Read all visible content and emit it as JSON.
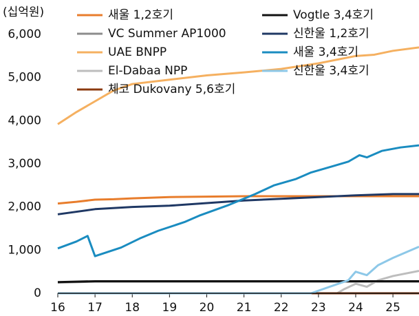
{
  "chart_data": {
    "type": "line",
    "unit_label": "(십억원)",
    "xlim": [
      16,
      25.7
    ],
    "xticks": [
      16,
      17,
      18,
      19,
      20,
      21,
      22,
      23,
      24,
      25
    ],
    "ylim": [
      0,
      6000
    ],
    "yticks": [
      0,
      {
        "value": 1000,
        "label": "1,000"
      },
      {
        "value": 2000,
        "label": "2,000"
      },
      {
        "value": 3000,
        "label": "3,000"
      },
      {
        "value": 4000,
        "label": "4,000"
      },
      {
        "value": 5000,
        "label": "5,000"
      },
      {
        "value": 6000,
        "label": "6,000"
      }
    ],
    "grid": false,
    "series": [
      {
        "name": "새울 1,2호기",
        "color": "#e87d2c",
        "x": [
          16,
          16.5,
          17,
          17.5,
          18,
          19,
          20,
          21,
          22,
          23,
          24,
          25,
          25.7
        ],
        "values": [
          2080,
          2120,
          2170,
          2180,
          2200,
          2230,
          2240,
          2250,
          2250,
          2250,
          2250,
          2250,
          2250
        ]
      },
      {
        "name": "VC Summer AP1000",
        "color": "#8c8c8c",
        "x": [
          16,
          17,
          18,
          19,
          20,
          21,
          22,
          23,
          24,
          25,
          25.7
        ],
        "values": [
          250,
          270,
          270,
          270,
          270,
          270,
          270,
          270,
          270,
          270,
          270
        ]
      },
      {
        "name": "UAE BNPP",
        "color": "#f5b060",
        "x": [
          16,
          16.5,
          17,
          17.5,
          18,
          19,
          20,
          21,
          22,
          23,
          24,
          24.5,
          25,
          25.7
        ],
        "values": [
          3920,
          4200,
          4450,
          4700,
          4850,
          4950,
          5050,
          5120,
          5200,
          5330,
          5500,
          5530,
          5620,
          5700
        ]
      },
      {
        "name": "El-Dabaa NPP",
        "color": "#bdbdbd",
        "x": [
          16,
          23.5,
          23.7,
          24,
          24.3,
          24.6,
          25,
          25.7
        ],
        "values": [
          0,
          0,
          100,
          220,
          150,
          300,
          400,
          520
        ]
      },
      {
        "name": "체코 Dukovany 5,6호기",
        "color": "#8b3a0f",
        "x": [
          16,
          25.7
        ],
        "values": [
          0,
          0
        ]
      },
      {
        "name": "Vogtle 3,4호기",
        "color": "#111111",
        "x": [
          16,
          17,
          18,
          19,
          20,
          21,
          22,
          23,
          24,
          25,
          25.7
        ],
        "values": [
          260,
          280,
          280,
          280,
          280,
          280,
          280,
          280,
          280,
          280,
          280
        ]
      },
      {
        "name": "신한울 1,2호기",
        "color": "#1f3864",
        "x": [
          16,
          17,
          18,
          19,
          20,
          21,
          22,
          23,
          24,
          25,
          25.7
        ],
        "values": [
          1830,
          1950,
          2000,
          2030,
          2090,
          2150,
          2190,
          2230,
          2270,
          2300,
          2300
        ]
      },
      {
        "name": "새울 3,4호기",
        "color": "#1a8cc0",
        "x": [
          16,
          16.5,
          16.8,
          17,
          17.7,
          18.2,
          18.7,
          19.4,
          19.8,
          20.6,
          21.3,
          21.8,
          22.4,
          22.8,
          23.4,
          23.8,
          24.1,
          24.3,
          24.7,
          25.2,
          25.7
        ],
        "values": [
          1040,
          1200,
          1330,
          860,
          1060,
          1270,
          1450,
          1650,
          1800,
          2050,
          2300,
          2500,
          2650,
          2800,
          2950,
          3050,
          3200,
          3150,
          3300,
          3380,
          3430
        ]
      },
      {
        "name": "신한울 3,4호기",
        "color": "#8dc8e8",
        "x": [
          16,
          22.8,
          23.3,
          23.8,
          24,
          24.3,
          24.6,
          25,
          25.7
        ],
        "values": [
          0,
          0,
          150,
          300,
          500,
          420,
          650,
          820,
          1080
        ]
      }
    ]
  }
}
